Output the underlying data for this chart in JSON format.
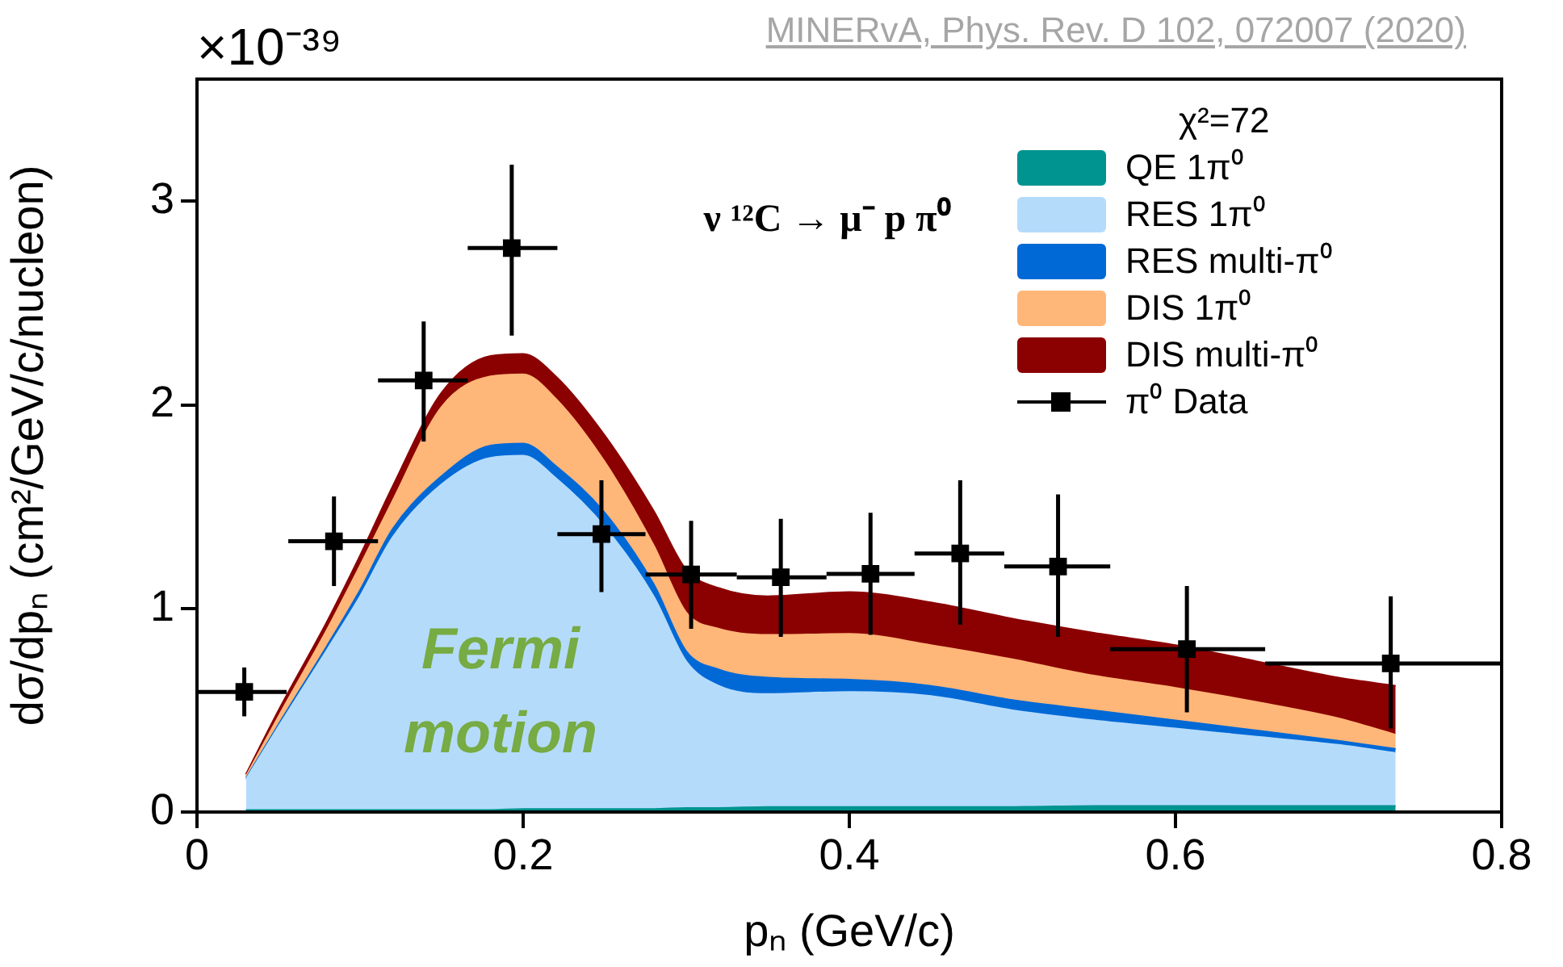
{
  "chart_data": {
    "type": "area",
    "stacked": true,
    "xlabel": "pₙ (GeV/c)",
    "ylabel": "dσ/dpₙ (cm²/GeV/c/nucleon)",
    "legend_title": "χ²=72",
    "legend": "top right",
    "annotations": [
      "×10⁻³⁹",
      "MINERvA, Phys. Rev. D 102, 072007 (2020)",
      "ν ¹²C → μ⁻ p π⁰",
      "Fermi motion"
    ],
    "x": [
      0.03,
      0.05,
      0.08,
      0.1,
      0.12,
      0.15,
      0.18,
      0.2,
      0.22,
      0.25,
      0.28,
      0.3,
      0.32,
      0.35,
      0.4,
      0.45,
      0.5,
      0.55,
      0.6,
      0.65,
      0.7,
      0.735
    ],
    "series": [
      {
        "name": "QE 1π⁰",
        "color": "#009490",
        "values": [
          0.01,
          0.01,
          0.01,
          0.01,
          0.01,
          0.01,
          0.01,
          0.015,
          0.015,
          0.015,
          0.015,
          0.02,
          0.02,
          0.025,
          0.025,
          0.025,
          0.025,
          0.03,
          0.03,
          0.03,
          0.03,
          0.03
        ]
      },
      {
        "name": "RES 1π⁰",
        "color": "#b5dbfb",
        "values": [
          0.15,
          0.41,
          0.79,
          1.05,
          1.34,
          1.6,
          1.73,
          1.735,
          1.625,
          1.385,
          1.045,
          0.72,
          0.6,
          0.555,
          0.565,
          0.545,
          0.475,
          0.42,
          0.38,
          0.34,
          0.3,
          0.26
        ]
      },
      {
        "name": "RES multi-π⁰",
        "color": "#0069d6",
        "values": [
          0.005,
          0.01,
          0.02,
          0.03,
          0.04,
          0.04,
          0.06,
          0.06,
          0.06,
          0.07,
          0.06,
          0.05,
          0.08,
          0.08,
          0.06,
          0.05,
          0.05,
          0.05,
          0.04,
          0.03,
          0.02,
          0.02
        ]
      },
      {
        "name": "DIS 1π⁰",
        "color": "#ffb679",
        "values": [
          0.01,
          0.04,
          0.08,
          0.12,
          0.14,
          0.34,
          0.34,
          0.34,
          0.33,
          0.25,
          0.19,
          0.19,
          0.2,
          0.21,
          0.225,
          0.2,
          0.2,
          0.17,
          0.16,
          0.14,
          0.11,
          0.07
        ]
      },
      {
        "name": "DIS multi-π⁰",
        "color": "#8b0000",
        "values": [
          0.01,
          0.03,
          0.04,
          0.05,
          0.07,
          0.07,
          0.1,
          0.1,
          0.11,
          0.13,
          0.17,
          0.21,
          0.2,
          0.19,
          0.205,
          0.21,
          0.2,
          0.21,
          0.21,
          0.2,
          0.2,
          0.24
        ]
      },
      {
        "name": "π⁰ Data",
        "type": "scatter",
        "marker": "square",
        "color": "#000000",
        "x": [
          0.029,
          0.084,
          0.139,
          0.193,
          0.248,
          0.303,
          0.358,
          0.413,
          0.468,
          0.528,
          0.607,
          0.732
        ],
        "values": [
          0.59,
          1.33,
          2.12,
          2.77,
          1.365,
          1.167,
          1.153,
          1.17,
          1.27,
          1.206,
          0.8,
          0.73
        ],
        "errors": [
          [
            0.47,
            0.71
          ],
          [
            1.11,
            1.55
          ],
          [
            1.82,
            2.41
          ],
          [
            2.34,
            3.18
          ],
          [
            1.08,
            1.63
          ],
          [
            0.9,
            1.43
          ],
          [
            0.86,
            1.44
          ],
          [
            0.87,
            1.47
          ],
          [
            0.92,
            1.63
          ],
          [
            0.86,
            1.56
          ],
          [
            0.49,
            1.11
          ],
          [
            0.41,
            1.06
          ]
        ],
        "xerrors": [
          [
            0,
            0.055
          ],
          [
            0.056,
            0.111
          ],
          [
            0.111,
            0.166
          ],
          [
            0.166,
            0.221
          ],
          [
            0.221,
            0.275
          ],
          [
            0.275,
            0.331
          ],
          [
            0.331,
            0.386
          ],
          [
            0.386,
            0.44
          ],
          [
            0.44,
            0.495
          ],
          [
            0.495,
            0.56
          ],
          [
            0.56,
            0.655
          ],
          [
            0.655,
            0.8
          ]
        ]
      }
    ],
    "xlim": [
      0,
      0.8
    ],
    "ylim": [
      0,
      3.6
    ],
    "xticks": [
      0,
      0.2,
      0.4,
      0.6,
      0.8
    ],
    "yticks": [
      0,
      1,
      2,
      3
    ]
  }
}
